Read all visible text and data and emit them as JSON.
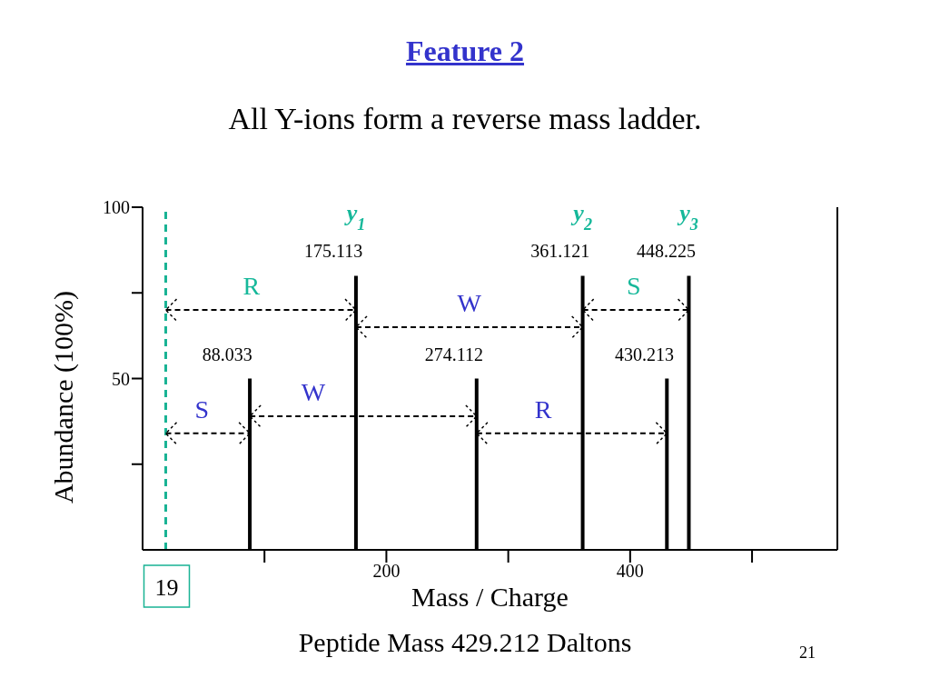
{
  "chart_data": {
    "type": "bar",
    "title": "Feature 2",
    "subtitle": "All Y-ions form a reverse mass ladder.",
    "xlabel": "Mass / Charge",
    "ylabel": "Abundance (100%)",
    "x": [
      88.033,
      175.113,
      274.112,
      361.121,
      430.213,
      448.225
    ],
    "values": [
      50,
      80,
      50,
      80,
      50,
      80
    ],
    "color": "#000000",
    "xlim": [
      0,
      570
    ],
    "xticks": [
      {
        "value": 100,
        "label": null
      },
      200,
      {
        "value": 300,
        "label": null
      },
      400,
      {
        "value": 500,
        "label": null
      }
    ],
    "ylim": [
      0,
      100
    ],
    "yticks": [
      {
        "value": 25,
        "label": null
      },
      50,
      {
        "value": 75,
        "label": null
      },
      100
    ],
    "ref_lines": [
      {
        "axis": "x",
        "value": 19,
        "label": "19",
        "color": "#19b394",
        "line_style": "dashed"
      }
    ],
    "annotations": [
      "y$_{1}$",
      "y$_{2}$",
      "y$_{3}$",
      "R",
      "W",
      "S",
      {
        "text": "S",
        "x": 19,
        "y": 34
      },
      "W",
      "R",
      "Peptide Mass 429.212 Daltons",
      "21",
      {
        "text": "88.033",
        "x": 88.033,
        "y": 50
      },
      {
        "text": "175.113",
        "x": 175.113,
        "y": 80
      },
      {
        "text": "274.112",
        "x": 274.112,
        "y": 50
      },
      {
        "text": "361.121",
        "x": 361.121,
        "y": 80
      },
      {
        "text": "430.213",
        "x": 430.213,
        "y": 50
      },
      {
        "text": "448.225",
        "x": 448.225,
        "y": 80
      }
    ]
  }
}
